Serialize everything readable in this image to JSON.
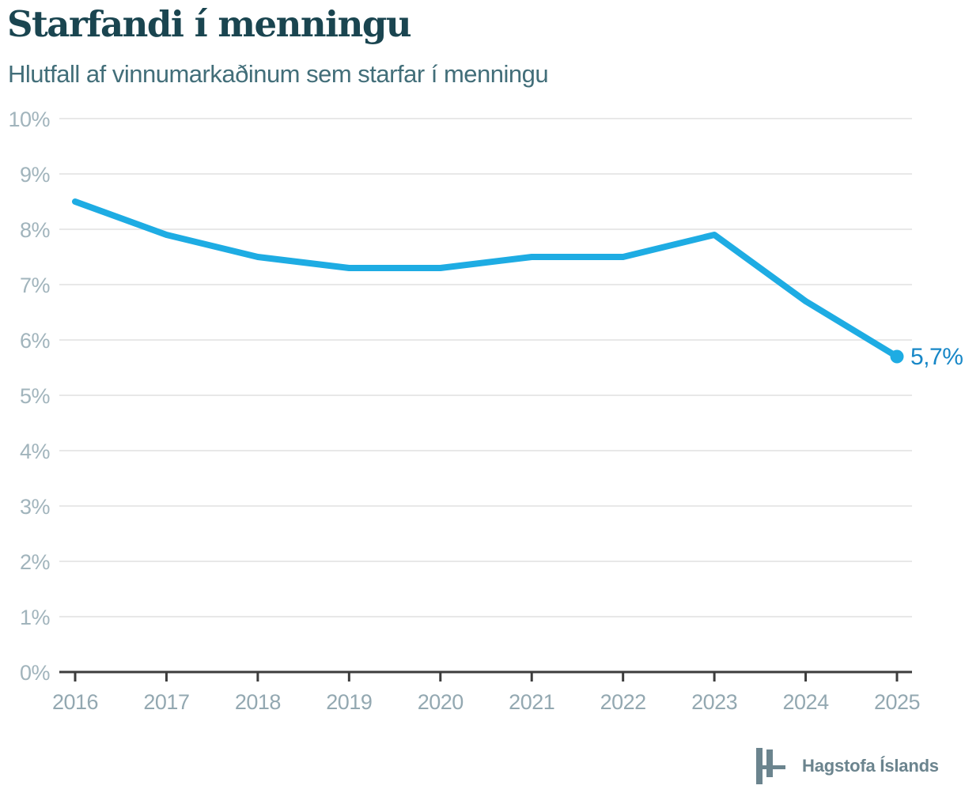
{
  "header": {
    "title": "Starfandi í menningu",
    "subtitle": "Hlutfall af vinnumarkaðinum sem starfar í menningu"
  },
  "chart_data": {
    "type": "line",
    "title": "Starfandi í menningu",
    "subtitle": "Hlutfall af vinnumarkaðinum sem starfar í menningu",
    "categories": [
      "2016",
      "2017",
      "2018",
      "2019",
      "2020",
      "2021",
      "2022",
      "2023",
      "2024",
      "2025"
    ],
    "values": [
      8.5,
      7.9,
      7.5,
      7.3,
      7.3,
      7.5,
      7.5,
      7.9,
      6.7,
      5.7
    ],
    "end_label": "5,7%",
    "xlabel": "",
    "ylabel": "",
    "ylim": [
      0,
      10
    ],
    "ytick_step": 1,
    "ytick_suffix": "%",
    "grid": true,
    "legend_position": "none",
    "colors": {
      "line": "#1eace3",
      "end_point": "#1eace3",
      "end_label": "#1787c7",
      "title": "#1a4550",
      "subtitle": "#426e79",
      "grid": "#e8e8e8",
      "axis": "#3c3c3c",
      "y_tick_label": "#a1b4bc",
      "x_tick_label": "#93a8b1",
      "logo": "#6b848e"
    }
  },
  "footer": {
    "logo_text": "Hagstofa Íslands"
  }
}
